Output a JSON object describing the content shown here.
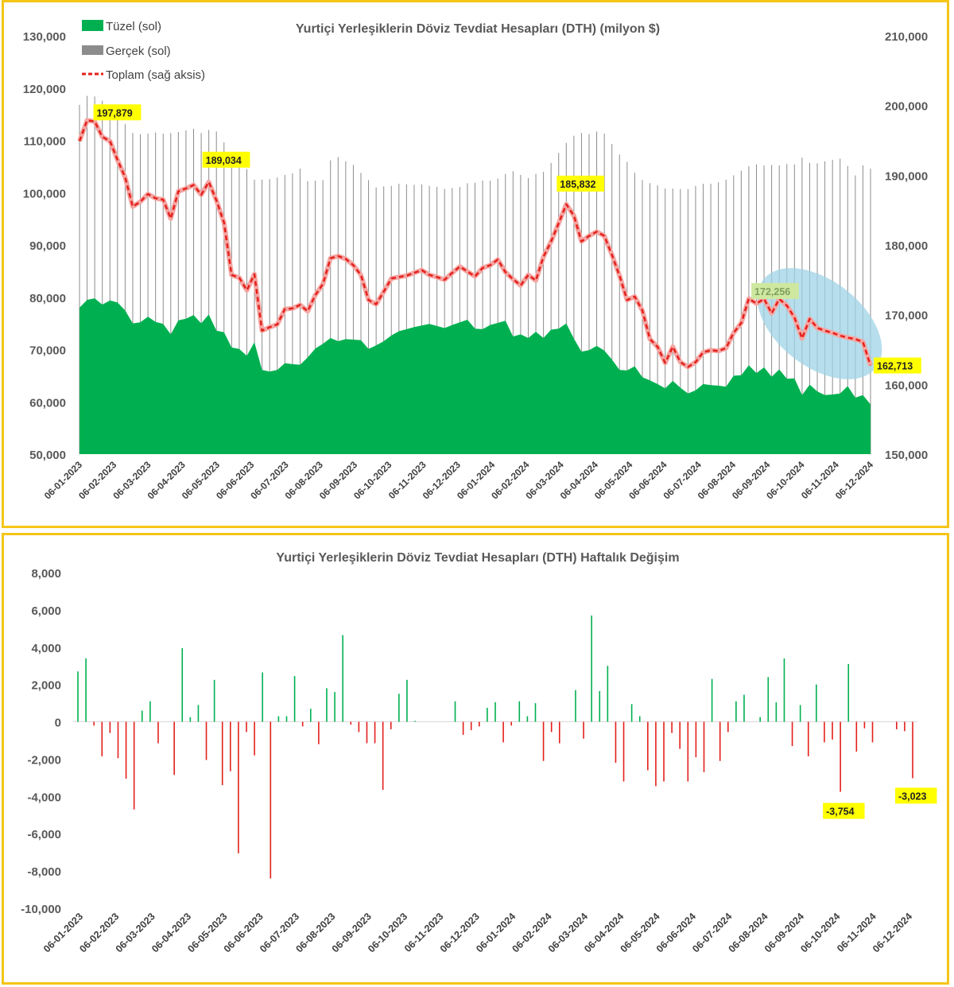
{
  "colors": {
    "frame": "#f5c518",
    "tuzel": "#00b050",
    "gercek": "#8c8c8c",
    "toplam": "#e3201b",
    "positive": "#00b050",
    "negative": "#e3201b",
    "callout": "#ffff00",
    "highlight": "#9fd3e6"
  },
  "chart_data": [
    {
      "type": "area",
      "title": "Yurtiçi Yerleşiklerin Döviz Tevdiat Hesapları (DTH) (milyon $)",
      "legend_position": "top-left",
      "ylim_left": [
        50000,
        130000
      ],
      "ylim_right": [
        150000,
        210000
      ],
      "yticks_left": [
        "50,000",
        "60,000",
        "70,000",
        "80,000",
        "90,000",
        "100,000",
        "110,000",
        "120,000",
        "130,000"
      ],
      "yticks_right": [
        "150,000",
        "160,000",
        "170,000",
        "180,000",
        "190,000",
        "200,000",
        "210,000"
      ],
      "xticks": [
        "06-01-2023",
        "06-02-2023",
        "06-03-2023",
        "06-04-2023",
        "06-05-2023",
        "06-06-2023",
        "06-07-2023",
        "06-08-2023",
        "06-09-2023",
        "06-10-2023",
        "06-11-2023",
        "06-12-2023",
        "06-01-2024",
        "06-02-2024",
        "06-03-2024",
        "06-04-2024",
        "06-05-2024",
        "06-06-2024",
        "06-07-2024",
        "06-08-2024",
        "06-09-2024",
        "06-10-2024",
        "06-11-2024",
        "06-12-2024"
      ],
      "series": [
        {
          "name": "Tüzel (sol)",
          "type": "area",
          "axis": "left",
          "values": [
            78000,
            79500,
            79800,
            78600,
            79400,
            79000,
            77500,
            75000,
            75200,
            76300,
            75300,
            74900,
            72900,
            75600,
            75900,
            76600,
            75000,
            76700,
            73600,
            73300,
            70400,
            70100,
            68800,
            71400,
            66100,
            65800,
            66100,
            67400,
            67200,
            67100,
            68500,
            70200,
            71100,
            72200,
            71600,
            72000,
            71900,
            71800,
            70100,
            70800,
            71600,
            72700,
            73500,
            73900,
            74300,
            74600,
            74900,
            74500,
            74100,
            74700,
            75200,
            75700,
            74000,
            73900,
            74700,
            75100,
            75500,
            72500,
            72900,
            72200,
            73400,
            72200,
            73800,
            74000,
            75000,
            72100,
            69600,
            69900,
            70700,
            69800,
            68100,
            66100,
            66000,
            66800,
            64700,
            64100,
            63400,
            62600,
            64000,
            62700,
            61600,
            62200,
            63400,
            63200,
            63100,
            62900,
            65000,
            65100,
            67000,
            65500,
            66600,
            64800,
            66200,
            64400,
            64500,
            61300,
            63300,
            62000,
            61300,
            61400,
            61600,
            63000,
            60800,
            61300,
            59500
          ]
        },
        {
          "name": "Gerçek (sol)",
          "type": "bar",
          "axis": "left",
          "values": [
            116800,
            118500,
            118400,
            117600,
            116100,
            114600,
            113100,
            111400,
            111200,
            111300,
            111500,
            111300,
            111400,
            111600,
            111900,
            112200,
            111400,
            112000,
            111700,
            109600,
            105200,
            104900,
            104500,
            102500,
            102500,
            102600,
            102900,
            103400,
            103700,
            104600,
            102200,
            102300,
            102400,
            106200,
            106800,
            106000,
            105300,
            103800,
            102400,
            101000,
            101200,
            101300,
            101700,
            101600,
            101500,
            101600,
            101300,
            101100,
            100700,
            100900,
            101100,
            101800,
            101900,
            102300,
            102300,
            102700,
            103600,
            104100,
            103400,
            102800,
            103600,
            104000,
            105700,
            107600,
            109500,
            110900,
            111400,
            111200,
            111700,
            111300,
            109300,
            107300,
            105900,
            103800,
            102400,
            101800,
            101400,
            100800,
            100800,
            100700,
            100700,
            101300,
            101700,
            101700,
            102000,
            102500,
            103300,
            104200,
            105100,
            105400,
            105200,
            105300,
            105200,
            105500,
            105400,
            106700,
            105700,
            105600,
            106000,
            106300,
            106500,
            105100,
            103300,
            105200,
            104600
          ]
        },
        {
          "name": "Toplam (sağ aksis)",
          "type": "line",
          "axis": "right",
          "values": [
            194900,
            197879,
            197700,
            195500,
            194900,
            192200,
            189700,
            185500,
            186200,
            187300,
            186700,
            186500,
            183800,
            187700,
            188100,
            188600,
            187200,
            189034,
            186400,
            183200,
            175700,
            175300,
            173500,
            175800,
            167700,
            168200,
            168600,
            170800,
            170900,
            171400,
            170500,
            172800,
            174400,
            178100,
            178400,
            178000,
            177100,
            175700,
            172100,
            171500,
            173300,
            175200,
            175400,
            175600,
            176000,
            176400,
            175700,
            175400,
            175000,
            176000,
            176900,
            176200,
            175500,
            176700,
            177100,
            177900,
            176100,
            175100,
            174200,
            175700,
            174900,
            178300,
            180500,
            183100,
            185832,
            184200,
            180500,
            181300,
            181900,
            181300,
            178600,
            175600,
            172100,
            172600,
            170600,
            166500,
            165400,
            163100,
            165400,
            163200,
            162500,
            163200,
            164600,
            164900,
            164800,
            165200,
            167400,
            168800,
            172300,
            171600,
            172256,
            170200,
            172256,
            171300,
            169600,
            166600,
            169400,
            168100,
            167700,
            167400,
            167000,
            166700,
            166500,
            166100,
            162713
          ]
        }
      ],
      "annotations": [
        "197,879",
        "189,034",
        "185,832",
        "172,256",
        "162,713"
      ]
    },
    {
      "type": "bar",
      "title": "Yurtiçi Yerleşiklerin Döviz Tevdiat Hesapları (DTH) Haftalık Değişim",
      "ylim": [
        -10000,
        8000
      ],
      "yticks": [
        "-10,000",
        "-8,000",
        "-6,000",
        "-4,000",
        "-2,000",
        "0",
        "2,000",
        "4,000",
        "6,000",
        "8,000"
      ],
      "xticks": [
        "06-01-2023",
        "06-02-2023",
        "06-03-2023",
        "06-04-2023",
        "06-05-2023",
        "06-06-2023",
        "06-07-2023",
        "06-08-2023",
        "06-09-2023",
        "06-10-2023",
        "06-11-2023",
        "06-12-2023",
        "06-01-2024",
        "06-02-2024",
        "06-03-2024",
        "06-04-2024",
        "06-05-2024",
        "06-06-2024",
        "06-07-2024",
        "06-08-2024",
        "06-09-2024",
        "06-10-2024",
        "06-11-2024",
        "06-12-2024"
      ],
      "values": [
        2700,
        3400,
        -200,
        -1850,
        -600,
        -1950,
        -3050,
        -4700,
        600,
        1100,
        -1150,
        0,
        -2850,
        3950,
        250,
        900,
        -2050,
        2250,
        -3400,
        -2650,
        -7050,
        -550,
        -1800,
        2650,
        -8400,
        300,
        300,
        2450,
        -250,
        700,
        -1200,
        1800,
        1600,
        4650,
        -150,
        -550,
        -1150,
        -1150,
        -3650,
        -400,
        1500,
        2250,
        50,
        0,
        0,
        0,
        0,
        1100,
        -700,
        -450,
        -250,
        750,
        1050,
        -1100,
        -200,
        1100,
        300,
        1000,
        -2100,
        -550,
        -1150,
        0,
        1700,
        -900,
        5700,
        1650,
        3000,
        -2200,
        -3200,
        950,
        300,
        -2600,
        -3450,
        -3200,
        -600,
        -1450,
        -3200,
        -1900,
        -2700,
        2300,
        -2100,
        -550,
        1100,
        1450,
        0,
        250,
        2400,
        1050,
        3400,
        -1300,
        900,
        -1850,
        2000,
        -1100,
        -950,
        -3754,
        3100,
        -1600,
        -350,
        -1100,
        0,
        0,
        -400,
        -500,
        -3023
      ],
      "annotations": [
        "-3,754",
        "-3,023"
      ]
    }
  ]
}
